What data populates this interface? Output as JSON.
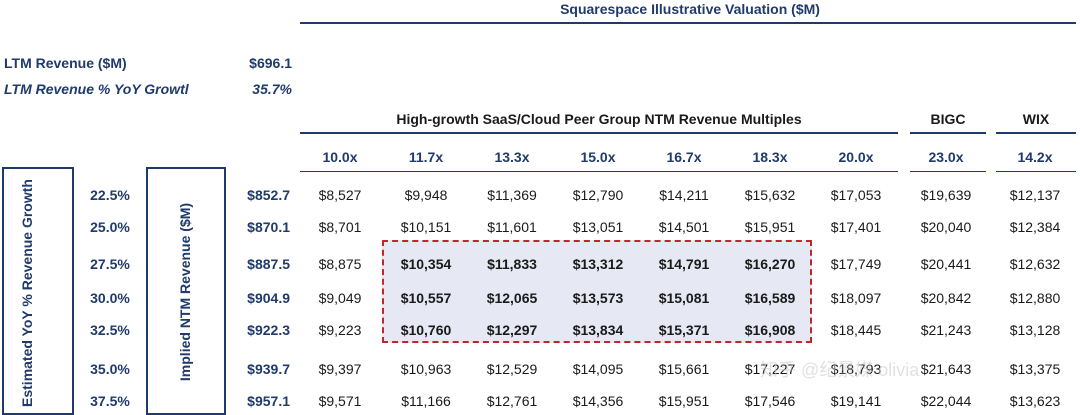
{
  "title": "Squarespace Illustrative Valuation ($M)",
  "ltm_revenue": {
    "label": "LTM Revenue ($M)",
    "value": "$696.1"
  },
  "ltm_growth": {
    "label": "LTM Revenue % YoY Growtl",
    "value": "35.7%"
  },
  "group_header": "High-growth SaaS/Cloud Peer Group NTM Revenue Multiples",
  "bigc_header": "BIGC",
  "wix_header": "WIX",
  "multiples": [
    "10.0x",
    "11.7x",
    "13.3x",
    "15.0x",
    "16.7x",
    "18.3x",
    "20.0x",
    "23.0x",
    "14.2x"
  ],
  "left_vertical_label": "Estimated YoY % Revenue Growth",
  "implied_vertical_label": "Implied NTM Revenue ($M)",
  "rows": [
    {
      "growth": "22.5%",
      "implied": "$852.7",
      "values": [
        "$8,527",
        "$9,948",
        "$11,369",
        "$12,790",
        "$14,211",
        "$15,632",
        "$17,053",
        "$19,639",
        "$12,137"
      ]
    },
    {
      "growth": "25.0%",
      "implied": "$870.1",
      "values": [
        "$8,701",
        "$10,151",
        "$11,601",
        "$13,051",
        "$14,501",
        "$15,951",
        "$17,401",
        "$20,040",
        "$12,384"
      ]
    },
    {
      "growth": "27.5%",
      "implied": "$887.5",
      "values": [
        "$8,875",
        "$10,354",
        "$11,833",
        "$13,312",
        "$14,791",
        "$16,270",
        "$17,749",
        "$20,441",
        "$12,632"
      ]
    },
    {
      "growth": "30.0%",
      "implied": "$904.9",
      "values": [
        "$9,049",
        "$10,557",
        "$12,065",
        "$13,573",
        "$15,081",
        "$16,589",
        "$18,097",
        "$20,842",
        "$12,880"
      ]
    },
    {
      "growth": "32.5%",
      "implied": "$922.3",
      "values": [
        "$9,223",
        "$10,760",
        "$12,297",
        "$13,834",
        "$15,371",
        "$16,908",
        "$18,445",
        "$21,243",
        "$13,128"
      ]
    },
    {
      "growth": "35.0%",
      "implied": "$939.7",
      "values": [
        "$9,397",
        "$10,963",
        "$12,529",
        "$14,095",
        "$15,661",
        "$17,227",
        "$18,793",
        "$21,643",
        "$13,375"
      ]
    },
    {
      "growth": "37.5%",
      "implied": "$957.1",
      "values": [
        "$9,571",
        "$11,166",
        "$12,761",
        "$14,356",
        "$15,951",
        "$17,546",
        "$19,141",
        "$22,044",
        "$13,623"
      ]
    }
  ],
  "watermark": "知乎 @纪景媒 olivia"
}
